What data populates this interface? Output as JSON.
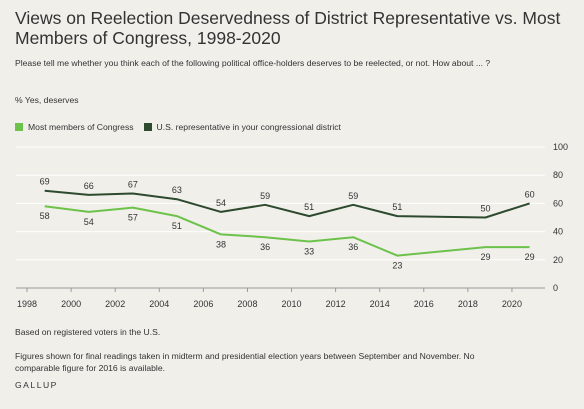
{
  "title": "Views on Reelection Deservedness of District Representative vs. Most Members of Congress, 1998-2020",
  "question": "Please tell me whether you think each of the following political office-holders deserves to be reelected, or not. How about ... ?",
  "unit_label": "% Yes, deserves",
  "note_sample": "Based on registered voters in the U.S.",
  "note_method": "Figures shown for final readings taken in midterm and presidential election years between September and November. No comparable figure for 2016 is available.",
  "brand": "GALLUP",
  "colors": {
    "light_green": "#6cc24a",
    "dark_green": "#2d4a2f",
    "background": "#f0efea"
  },
  "chart_data": {
    "type": "line",
    "xlim": [
      1997.5,
      2021.5
    ],
    "ylim": [
      0,
      100
    ],
    "x_ticks": [
      1998,
      2000,
      2002,
      2004,
      2006,
      2008,
      2010,
      2012,
      2014,
      2016,
      2018,
      2020
    ],
    "y_ticks": [
      0,
      20,
      40,
      60,
      80,
      100
    ],
    "grid": "horizontal",
    "legend_position": "top-left",
    "series": [
      {
        "name": "Most members of Congress",
        "color": "#6cc24a",
        "points": [
          {
            "x": 1998.8,
            "y": 58,
            "label": "58"
          },
          {
            "x": 2000.8,
            "y": 54,
            "label": "54"
          },
          {
            "x": 2002.8,
            "y": 57,
            "label": "57"
          },
          {
            "x": 2004.8,
            "y": 51,
            "label": "51"
          },
          {
            "x": 2006.8,
            "y": 38,
            "label": "38"
          },
          {
            "x": 2008.8,
            "y": 36,
            "label": "36"
          },
          {
            "x": 2010.8,
            "y": 33,
            "label": "33"
          },
          {
            "x": 2012.8,
            "y": 36,
            "label": "36"
          },
          {
            "x": 2014.8,
            "y": 23,
            "label": "23"
          },
          {
            "x": 2018.8,
            "y": 29,
            "label": "29"
          },
          {
            "x": 2020.8,
            "y": 29,
            "label": "29"
          }
        ]
      },
      {
        "name": "U.S. representative in your congressional district",
        "color": "#2d4a2f",
        "points": [
          {
            "x": 1998.8,
            "y": 69,
            "label": "69"
          },
          {
            "x": 2000.8,
            "y": 66,
            "label": "66"
          },
          {
            "x": 2002.8,
            "y": 67,
            "label": "67"
          },
          {
            "x": 2004.8,
            "y": 63,
            "label": "63"
          },
          {
            "x": 2006.8,
            "y": 54,
            "label": "54"
          },
          {
            "x": 2008.8,
            "y": 59,
            "label": "59"
          },
          {
            "x": 2010.8,
            "y": 51,
            "label": "51"
          },
          {
            "x": 2012.8,
            "y": 59,
            "label": "59"
          },
          {
            "x": 2014.8,
            "y": 51,
            "label": "51"
          },
          {
            "x": 2018.8,
            "y": 50,
            "label": "50"
          },
          {
            "x": 2020.8,
            "y": 60,
            "label": "60"
          }
        ]
      }
    ]
  }
}
